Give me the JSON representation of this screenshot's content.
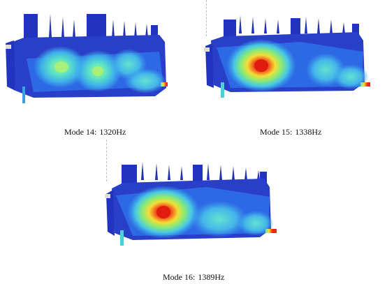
{
  "figures": [
    {
      "mode_label": "Mode 14:",
      "frequency": "1320Hz"
    },
    {
      "mode_label": "Mode 15:",
      "frequency": "1338Hz"
    },
    {
      "mode_label": "Mode 16:",
      "frequency": "1389Hz"
    }
  ],
  "colors": {
    "contour_low": "#1a2fb8",
    "contour_mid_low": "#2f6ee8",
    "contour_mid": "#3fb7e8",
    "contour_mid_high": "#5fe0c8",
    "contour_high": "#9ee86a",
    "contour_peak_outer": "#f2e23a",
    "contour_peak": "#e8281c"
  }
}
